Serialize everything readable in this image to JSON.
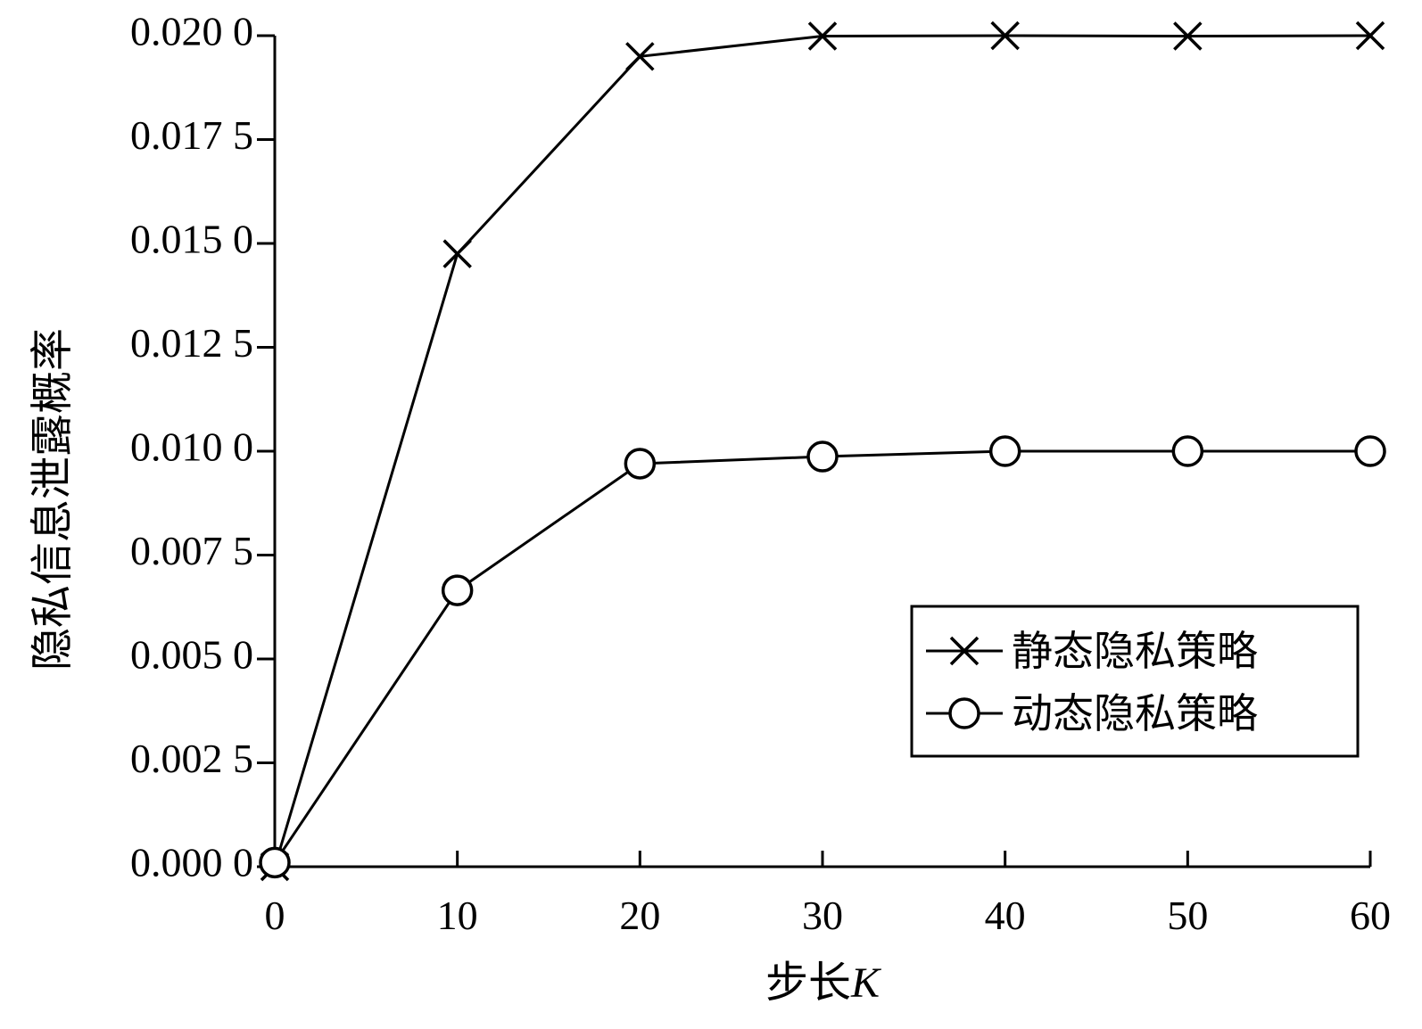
{
  "chart_data": {
    "type": "line",
    "title": "",
    "xlabel_text": "步长",
    "xlabel_var": "K",
    "ylabel": "隐私信息泄露概率",
    "x": [
      0,
      10,
      20,
      30,
      40,
      50,
      60
    ],
    "xticks": [
      "0",
      "10",
      "20",
      "30",
      "40",
      "50",
      "60"
    ],
    "yticks": [
      "0.000 0",
      "0.002 5",
      "0.005 0",
      "0.007 5",
      "0.010 0",
      "0.012 5",
      "0.015 0",
      "0.017 5",
      "0.020 0"
    ],
    "xlim": [
      0,
      60
    ],
    "ylim": [
      0,
      0.02
    ],
    "grid": false,
    "legend_position": "right",
    "series": [
      {
        "name": "静态隐私策略",
        "marker": "x",
        "values": [
          0.0,
          0.01475,
          0.0195,
          0.01999,
          0.02,
          0.01999,
          0.02
        ]
      },
      {
        "name": "动态隐私策略",
        "marker": "circle",
        "values": [
          0.0001,
          0.00665,
          0.0097,
          0.00987,
          0.01,
          0.01,
          0.01
        ]
      }
    ],
    "line_color": "#000000"
  }
}
